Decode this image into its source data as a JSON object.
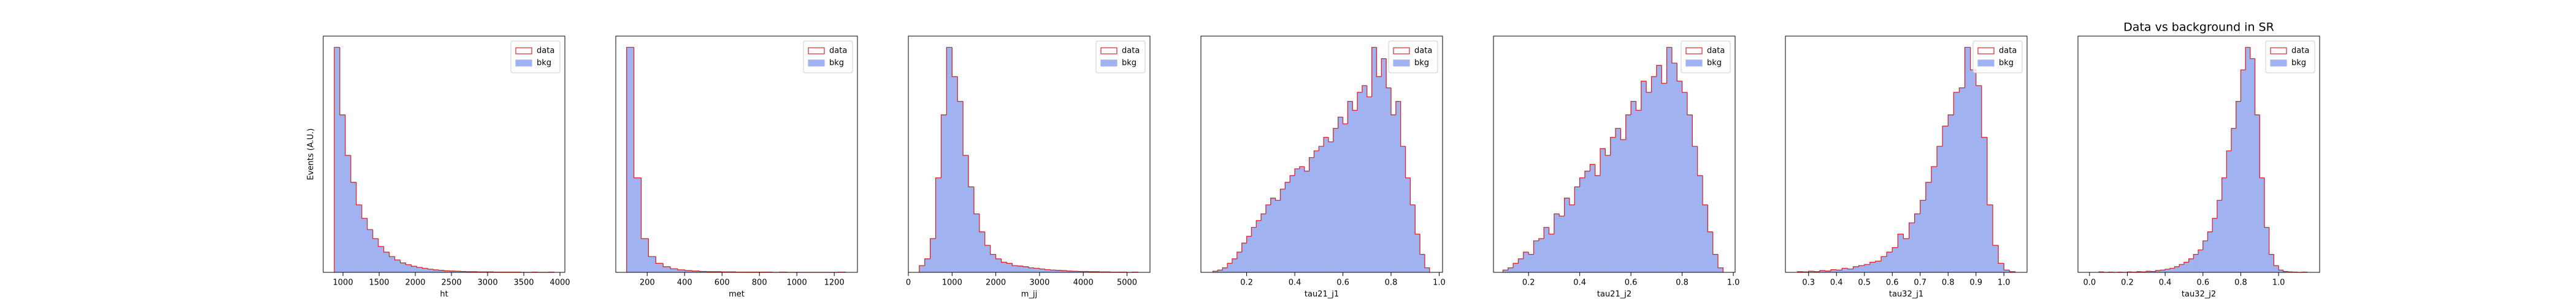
{
  "chart_data": [
    {
      "type": "histogram",
      "xlabel": "ht",
      "ylabel": "Events (A.U.)",
      "legend": "upper right",
      "xlim": [
        727,
        4068
      ],
      "ylim": [
        0,
        1050
      ],
      "xticks": [
        1000,
        1500,
        2000,
        2500,
        3000,
        3500,
        4000
      ],
      "bins": [
        880,
        956,
        1032,
        1108,
        1184,
        1260,
        1336,
        1412,
        1488,
        1564,
        1640,
        1716,
        1792,
        1868,
        1944,
        2020,
        2096,
        2172,
        2248,
        2324,
        2400,
        2476,
        2552,
        2628,
        2704,
        2780,
        2856,
        2932,
        3008,
        3084,
        3160,
        3236,
        3312,
        3388,
        3464,
        3540,
        3616,
        3692,
        3768,
        3844,
        3920
      ],
      "series": [
        {
          "name": "data",
          "color": "#d62728",
          "histtype": "step",
          "values": [
            1000,
            700,
            520,
            400,
            300,
            240,
            190,
            150,
            115,
            90,
            70,
            55,
            42,
            34,
            27,
            22,
            18,
            14,
            11,
            9,
            7,
            6,
            5,
            4,
            3,
            3,
            2,
            2,
            2,
            1,
            1,
            1,
            1,
            1,
            0,
            0,
            1,
            0,
            0,
            1
          ]
        },
        {
          "name": "bkg",
          "color": "#a0b2ef",
          "histtype": "stepfilled",
          "values": [
            1000,
            700,
            520,
            400,
            300,
            240,
            190,
            150,
            115,
            90,
            70,
            55,
            42,
            34,
            27,
            22,
            18,
            14,
            11,
            9,
            7,
            6,
            5,
            4,
            3,
            3,
            2,
            2,
            2,
            1,
            1,
            1,
            1,
            1,
            0,
            0,
            1,
            0,
            0,
            1
          ]
        }
      ]
    },
    {
      "type": "histogram",
      "xlabel": "met",
      "legend": "upper right",
      "xlim": [
        32,
        1324
      ],
      "ylim": [
        0,
        1050
      ],
      "xticks": [
        200,
        400,
        600,
        800,
        1000,
        1200
      ],
      "bins": [
        90,
        129,
        168,
        207,
        246,
        285,
        324,
        363,
        402,
        441,
        480,
        519,
        558,
        597,
        636,
        675,
        714,
        753,
        792,
        831,
        870,
        909,
        948,
        987,
        1026,
        1065,
        1104,
        1143,
        1182,
        1221,
        1260
      ],
      "series": [
        {
          "name": "data",
          "color": "#d62728",
          "histtype": "step",
          "values": [
            1000,
            420,
            150,
            70,
            40,
            25,
            16,
            11,
            8,
            6,
            4,
            3,
            3,
            2,
            2,
            1,
            1,
            1,
            1,
            1,
            0,
            1,
            0,
            0,
            0,
            0,
            0,
            0,
            0,
            1
          ]
        },
        {
          "name": "bkg",
          "color": "#a0b2ef",
          "histtype": "stepfilled",
          "values": [
            1000,
            420,
            150,
            70,
            40,
            25,
            16,
            11,
            8,
            6,
            4,
            3,
            3,
            2,
            2,
            1,
            1,
            1,
            1,
            1,
            0,
            1,
            0,
            0,
            0,
            0,
            0,
            0,
            0,
            1
          ]
        }
      ]
    },
    {
      "type": "histogram",
      "xlabel": "m_jj",
      "legend": "upper right",
      "xlim": [
        0,
        5526
      ],
      "ylim": [
        0,
        1050
      ],
      "xticks": [
        0,
        1000,
        2000,
        3000,
        4000,
        5000
      ],
      "bins": [
        250,
        375,
        500,
        625,
        750,
        875,
        1000,
        1125,
        1250,
        1375,
        1500,
        1625,
        1750,
        1875,
        2000,
        2125,
        2250,
        2375,
        2500,
        2625,
        2750,
        2875,
        3000,
        3125,
        3250,
        3375,
        3500,
        3625,
        3750,
        3875,
        4000,
        4125,
        4250,
        4375,
        4500,
        4625,
        4750,
        4875,
        5000,
        5125,
        5250
      ],
      "series": [
        {
          "name": "data",
          "color": "#d62728",
          "histtype": "step",
          "values": [
            30,
            60,
            150,
            420,
            700,
            1000,
            870,
            760,
            520,
            380,
            260,
            180,
            120,
            80,
            60,
            45,
            40,
            30,
            28,
            25,
            20,
            18,
            15,
            12,
            10,
            9,
            8,
            6,
            5,
            4,
            4,
            3,
            3,
            2,
            2,
            1,
            1,
            1,
            0,
            1
          ]
        },
        {
          "name": "bkg",
          "color": "#a0b2ef",
          "histtype": "stepfilled",
          "values": [
            30,
            60,
            150,
            420,
            700,
            1000,
            870,
            760,
            520,
            380,
            260,
            180,
            120,
            80,
            60,
            45,
            40,
            30,
            28,
            25,
            20,
            18,
            15,
            12,
            10,
            9,
            8,
            6,
            5,
            4,
            4,
            3,
            3,
            2,
            2,
            1,
            1,
            1,
            0,
            1
          ]
        }
      ]
    },
    {
      "type": "histogram",
      "xlabel": "tau21_j1",
      "legend": "upper right",
      "xlim": [
        0.01,
        1.014
      ],
      "ylim": [
        0,
        1050
      ],
      "xticks": [
        0.2,
        0.4,
        0.6,
        0.8,
        {
          "value": 1,
          "label": "1.0"
        }
      ],
      "bins": [
        0.06,
        0.08,
        0.1,
        0.12,
        0.14,
        0.16,
        0.18,
        0.2,
        0.22,
        0.24,
        0.26,
        0.28,
        0.3,
        0.32,
        0.34,
        0.36,
        0.38,
        0.4,
        0.42,
        0.44,
        0.46,
        0.48,
        0.5,
        0.52,
        0.54,
        0.56,
        0.58,
        0.6,
        0.62,
        0.64,
        0.66,
        0.68,
        0.7,
        0.72,
        0.74,
        0.76,
        0.78,
        0.8,
        0.82,
        0.84,
        0.86,
        0.88,
        0.9,
        0.92,
        0.94,
        0.96
      ],
      "series": [
        {
          "name": "data",
          "color": "#d62728",
          "histtype": "step",
          "values": [
            5,
            10,
            20,
            40,
            60,
            90,
            130,
            160,
            200,
            230,
            260,
            300,
            330,
            320,
            370,
            400,
            430,
            460,
            470,
            450,
            510,
            540,
            560,
            600,
            580,
            640,
            690,
            660,
            760,
            720,
            800,
            830,
            780,
            1000,
            870,
            950,
            820,
            700,
            760,
            560,
            420,
            300,
            170,
            80,
            20
          ]
        },
        {
          "name": "bkg",
          "color": "#a0b2ef",
          "histtype": "stepfilled",
          "values": [
            5,
            10,
            20,
            40,
            60,
            90,
            130,
            160,
            200,
            230,
            260,
            300,
            330,
            320,
            370,
            400,
            430,
            460,
            470,
            450,
            510,
            540,
            560,
            600,
            580,
            640,
            690,
            660,
            760,
            720,
            800,
            830,
            780,
            1000,
            870,
            950,
            820,
            700,
            760,
            560,
            420,
            300,
            170,
            80,
            20
          ]
        }
      ]
    },
    {
      "type": "histogram",
      "xlabel": "tau21_j2",
      "legend": "upper right",
      "xlim": [
        0.063,
        1.007
      ],
      "ylim": [
        0,
        1050
      ],
      "xticks": [
        0.2,
        0.4,
        0.6,
        0.8,
        {
          "value": 1,
          "label": "1.0"
        }
      ],
      "bins": [
        0.1,
        0.12,
        0.14,
        0.16,
        0.18,
        0.2,
        0.22,
        0.24,
        0.26,
        0.28,
        0.3,
        0.32,
        0.34,
        0.36,
        0.38,
        0.4,
        0.42,
        0.44,
        0.46,
        0.48,
        0.5,
        0.52,
        0.54,
        0.56,
        0.58,
        0.6,
        0.62,
        0.64,
        0.66,
        0.68,
        0.7,
        0.72,
        0.74,
        0.76,
        0.78,
        0.8,
        0.82,
        0.84,
        0.86,
        0.88,
        0.9,
        0.92,
        0.94,
        0.96
      ],
      "series": [
        {
          "name": "data",
          "color": "#d62728",
          "histtype": "step",
          "values": [
            10,
            20,
            40,
            60,
            90,
            80,
            140,
            150,
            200,
            170,
            260,
            250,
            330,
            300,
            380,
            420,
            450,
            480,
            430,
            550,
            520,
            600,
            640,
            590,
            700,
            760,
            720,
            850,
            800,
            870,
            920,
            840,
            1000,
            930,
            850,
            800,
            700,
            560,
            430,
            300,
            180,
            80,
            20
          ]
        },
        {
          "name": "bkg",
          "color": "#a0b2ef",
          "histtype": "stepfilled",
          "values": [
            10,
            20,
            40,
            60,
            90,
            80,
            140,
            150,
            200,
            170,
            260,
            250,
            330,
            300,
            380,
            420,
            450,
            480,
            430,
            550,
            520,
            600,
            640,
            590,
            700,
            760,
            720,
            850,
            800,
            870,
            920,
            840,
            1000,
            930,
            850,
            800,
            700,
            560,
            430,
            300,
            180,
            80,
            20
          ]
        }
      ]
    },
    {
      "type": "histogram",
      "xlabel": "tau32_j1",
      "legend": "upper right",
      "xlim": [
        0.217,
        1.083
      ],
      "ylim": [
        0,
        1050
      ],
      "xticks": [
        0.3,
        0.4,
        0.5,
        0.6,
        0.7,
        0.8,
        0.9,
        {
          "value": 1,
          "label": "1.0"
        }
      ],
      "bins": [
        0.26,
        0.28,
        0.3,
        0.32,
        0.34,
        0.36,
        0.38,
        0.4,
        0.42,
        0.44,
        0.46,
        0.48,
        0.5,
        0.52,
        0.54,
        0.56,
        0.58,
        0.6,
        0.62,
        0.64,
        0.66,
        0.68,
        0.7,
        0.72,
        0.74,
        0.76,
        0.78,
        0.8,
        0.82,
        0.84,
        0.86,
        0.88,
        0.9,
        0.92,
        0.94,
        0.96,
        0.98,
        1.0,
        1.02,
        1.04
      ],
      "series": [
        {
          "name": "data",
          "color": "#d62728",
          "histtype": "step",
          "values": [
            3,
            2,
            5,
            3,
            8,
            6,
            12,
            10,
            18,
            15,
            25,
            30,
            35,
            45,
            50,
            70,
            90,
            110,
            170,
            150,
            220,
            260,
            320,
            400,
            470,
            560,
            650,
            700,
            800,
            820,
            1000,
            900,
            830,
            600,
            300,
            120,
            40,
            10,
            3
          ]
        },
        {
          "name": "bkg",
          "color": "#a0b2ef",
          "histtype": "stepfilled",
          "values": [
            3,
            2,
            5,
            3,
            8,
            6,
            12,
            10,
            18,
            15,
            25,
            30,
            35,
            45,
            50,
            70,
            90,
            110,
            170,
            150,
            220,
            260,
            320,
            400,
            470,
            560,
            650,
            700,
            800,
            820,
            1000,
            900,
            830,
            600,
            300,
            120,
            40,
            10,
            3
          ]
        }
      ]
    },
    {
      "type": "histogram",
      "title": "Data vs background in SR",
      "xlabel": "tau32_j2",
      "legend": "upper right",
      "xlim": [
        -0.061,
        1.217
      ],
      "ylim": [
        0,
        1050
      ],
      "xticks": [
        {
          "value": 0,
          "label": "0.0"
        },
        0.2,
        0.4,
        0.6,
        0.8,
        {
          "value": 1,
          "label": "1.0"
        }
      ],
      "bins": [
        0.05,
        0.075,
        0.1,
        0.125,
        0.15,
        0.175,
        0.2,
        0.225,
        0.25,
        0.275,
        0.3,
        0.325,
        0.35,
        0.375,
        0.4,
        0.425,
        0.45,
        0.475,
        0.5,
        0.525,
        0.55,
        0.575,
        0.6,
        0.625,
        0.65,
        0.675,
        0.7,
        0.725,
        0.75,
        0.775,
        0.8,
        0.825,
        0.85,
        0.875,
        0.9,
        0.925,
        0.95,
        0.975,
        1.0,
        1.025,
        1.05,
        1.075,
        1.1,
        1.125,
        1.15
      ],
      "series": [
        {
          "name": "data",
          "color": "#d62728",
          "histtype": "step",
          "values": [
            2,
            0,
            1,
            0,
            1,
            0,
            2,
            1,
            3,
            2,
            5,
            4,
            8,
            10,
            14,
            18,
            25,
            35,
            45,
            60,
            80,
            100,
            140,
            180,
            240,
            320,
            420,
            540,
            640,
            760,
            900,
            1000,
            950,
            700,
            420,
            200,
            80,
            30,
            10,
            4,
            2,
            1,
            0,
            1
          ]
        },
        {
          "name": "bkg",
          "color": "#a0b2ef",
          "histtype": "stepfilled",
          "values": [
            2,
            0,
            1,
            0,
            1,
            0,
            2,
            1,
            3,
            2,
            5,
            4,
            8,
            10,
            14,
            18,
            25,
            35,
            45,
            60,
            80,
            100,
            140,
            180,
            240,
            320,
            420,
            540,
            640,
            760,
            900,
            1000,
            950,
            700,
            420,
            200,
            80,
            30,
            10,
            4,
            2,
            1,
            0,
            1
          ]
        }
      ]
    }
  ]
}
